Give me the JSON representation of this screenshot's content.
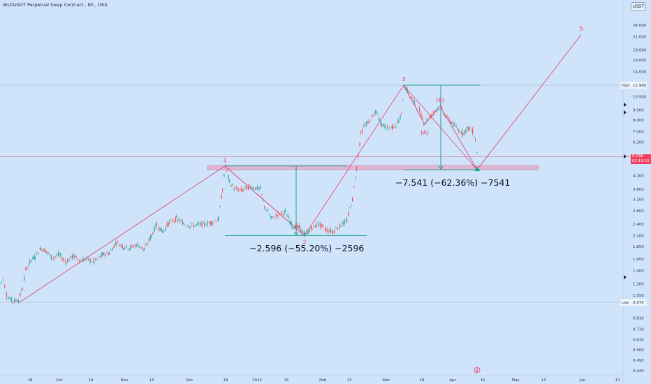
{
  "header": {
    "symbol": "WLDUSDT Perpetual Swap Contract",
    "timeframe": "8h",
    "exchange": "OKX"
  },
  "currency_button": "USDT",
  "colors": {
    "background": "#cfe4fb",
    "up": "#26a69a",
    "down": "#ef5350",
    "wave": "#e3386b",
    "measure": "#1e9f8e",
    "zone": "#e7a7c6",
    "price_tag": "#f23f5f"
  },
  "last_price": {
    "price": "5.238",
    "countdown": "02:19:15"
  },
  "measure_labels": [
    {
      "text": "−2.596 (−55.20%) −2596"
    },
    {
      "text": "−7.541 (−62.36%) −7541"
    }
  ],
  "chart_data": {
    "type": "line",
    "description_scale": "log",
    "y_ticks": [
      "24.000",
      "21.000",
      "18.000",
      "16.000",
      "14.000",
      "10.500",
      "9.000",
      "8.000",
      "7.000",
      "6.200",
      "4.200",
      "3.600",
      "3.200",
      "2.800",
      "2.400",
      "2.100",
      "1.850",
      "1.600",
      "1.400",
      "1.200",
      "1.050",
      "0.810",
      "0.710",
      "0.630",
      "0.560",
      "0.495",
      "0.440"
    ],
    "x_ticks": [
      "18",
      "Oct",
      "16",
      "Nov",
      "13",
      "Dec",
      "18",
      "2024",
      "15",
      "Feb",
      "13",
      "Mar",
      "18",
      "Apr",
      "15",
      "May",
      "13",
      "Jun",
      "17"
    ],
    "high": {
      "label": "High",
      "value": "11.980"
    },
    "low": {
      "label": "Low",
      "value": "0.970"
    },
    "price_series": [
      {
        "t": 0,
        "v": 1.2
      },
      {
        "t": 4,
        "v": 1.28
      },
      {
        "t": 9,
        "v": 1.05
      },
      {
        "t": 18,
        "v": 0.98
      },
      {
        "t": 26,
        "v": 1.0
      },
      {
        "t": 32,
        "v": 1.15
      },
      {
        "t": 36,
        "v": 1.4
      },
      {
        "t": 42,
        "v": 1.55
      },
      {
        "t": 50,
        "v": 1.65
      },
      {
        "t": 58,
        "v": 1.82
      },
      {
        "t": 66,
        "v": 1.75
      },
      {
        "t": 74,
        "v": 1.62
      },
      {
        "t": 84,
        "v": 1.68
      },
      {
        "t": 94,
        "v": 1.55
      },
      {
        "t": 104,
        "v": 1.66
      },
      {
        "t": 114,
        "v": 1.58
      },
      {
        "t": 124,
        "v": 1.6
      },
      {
        "t": 134,
        "v": 1.55
      },
      {
        "t": 146,
        "v": 1.68
      },
      {
        "t": 156,
        "v": 1.72
      },
      {
        "t": 166,
        "v": 1.95
      },
      {
        "t": 176,
        "v": 1.85
      },
      {
        "t": 186,
        "v": 1.82
      },
      {
        "t": 196,
        "v": 1.9
      },
      {
        "t": 206,
        "v": 1.78
      },
      {
        "t": 216,
        "v": 2.1
      },
      {
        "t": 224,
        "v": 2.4
      },
      {
        "t": 232,
        "v": 2.2
      },
      {
        "t": 242,
        "v": 2.45
      },
      {
        "t": 252,
        "v": 2.55
      },
      {
        "t": 262,
        "v": 2.42
      },
      {
        "t": 272,
        "v": 2.35
      },
      {
        "t": 282,
        "v": 2.38
      },
      {
        "t": 292,
        "v": 2.4
      },
      {
        "t": 302,
        "v": 2.45
      },
      {
        "t": 312,
        "v": 2.55
      },
      {
        "t": 318,
        "v": 3.6
      },
      {
        "t": 322,
        "v": 4.7
      },
      {
        "t": 328,
        "v": 3.9
      },
      {
        "t": 336,
        "v": 3.6
      },
      {
        "t": 346,
        "v": 3.55
      },
      {
        "t": 356,
        "v": 3.7
      },
      {
        "t": 366,
        "v": 3.65
      },
      {
        "t": 372,
        "v": 3.6
      },
      {
        "t": 378,
        "v": 2.95
      },
      {
        "t": 388,
        "v": 2.55
      },
      {
        "t": 398,
        "v": 2.7
      },
      {
        "t": 408,
        "v": 2.75
      },
      {
        "t": 418,
        "v": 2.35
      },
      {
        "t": 428,
        "v": 2.3
      },
      {
        "t": 436,
        "v": 2.12
      },
      {
        "t": 446,
        "v": 2.3
      },
      {
        "t": 456,
        "v": 2.4
      },
      {
        "t": 466,
        "v": 2.25
      },
      {
        "t": 476,
        "v": 2.2
      },
      {
        "t": 486,
        "v": 2.35
      },
      {
        "t": 496,
        "v": 2.5
      },
      {
        "t": 504,
        "v": 3.2
      },
      {
        "t": 510,
        "v": 4.6
      },
      {
        "t": 516,
        "v": 6.8
      },
      {
        "t": 522,
        "v": 7.6
      },
      {
        "t": 530,
        "v": 8.0
      },
      {
        "t": 538,
        "v": 8.8
      },
      {
        "t": 546,
        "v": 7.6
      },
      {
        "t": 554,
        "v": 7.3
      },
      {
        "t": 562,
        "v": 7.4
      },
      {
        "t": 568,
        "v": 7.7
      },
      {
        "t": 574,
        "v": 8.5
      },
      {
        "t": 578,
        "v": 11.98
      },
      {
        "t": 586,
        "v": 10.6
      },
      {
        "t": 594,
        "v": 9.6
      },
      {
        "t": 600,
        "v": 8.9
      },
      {
        "t": 606,
        "v": 7.8
      },
      {
        "t": 612,
        "v": 8.1
      },
      {
        "t": 618,
        "v": 8.5
      },
      {
        "t": 624,
        "v": 9.1
      },
      {
        "t": 630,
        "v": 9.3
      },
      {
        "t": 638,
        "v": 8.3
      },
      {
        "t": 646,
        "v": 7.8
      },
      {
        "t": 654,
        "v": 7.2
      },
      {
        "t": 662,
        "v": 6.9
      },
      {
        "t": 670,
        "v": 7.3
      },
      {
        "t": 676,
        "v": 7.0
      },
      {
        "t": 680,
        "v": 6.4
      },
      {
        "t": 683,
        "v": 5.24
      }
    ],
    "wave_points": [
      {
        "label": "",
        "t": 28,
        "v": 0.97
      },
      {
        "label": "1",
        "t": 322,
        "v": 4.7
      },
      {
        "label": "2",
        "t": 436,
        "v": 2.1
      },
      {
        "label": "3",
        "t": 578,
        "v": 11.98
      },
      {
        "label": "(A)",
        "t": 608,
        "v": 7.6
      },
      {
        "label": "(B)",
        "t": 630,
        "v": 9.4
      },
      {
        "label": "",
        "t": 683,
        "v": 4.5
      },
      {
        "label": "5",
        "t": 832,
        "v": 21.5
      }
    ],
    "measures": [
      {
        "from_t": 322,
        "to_t": 436,
        "from_v": 4.7,
        "to_v": 2.1
      },
      {
        "from_t": 578,
        "to_t": 683,
        "from_v": 11.98,
        "to_v": 4.5
      }
    ]
  }
}
